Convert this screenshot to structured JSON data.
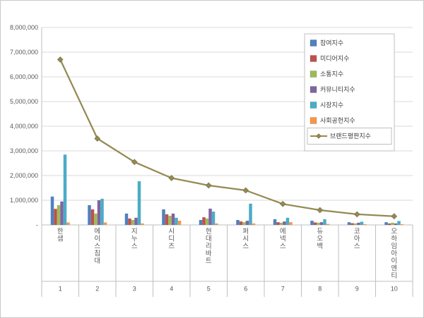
{
  "chart_data": {
    "type": "bar",
    "subtype": "clustered-bars-with-line-overlay",
    "title": "",
    "categories": [
      "한샘",
      "에이스침대",
      "지누스",
      "시디즈",
      "현대리바트",
      "퍼시스",
      "에넥스",
      "듀오백",
      "코아스",
      "오하임아이엔티"
    ],
    "category_ranks": [
      "1",
      "2",
      "3",
      "4",
      "5",
      "6",
      "7",
      "8",
      "9",
      "10"
    ],
    "series": [
      {
        "name": "참여지수",
        "type": "bar",
        "color": "#4F81BD",
        "values": [
          1150000,
          800000,
          460000,
          630000,
          200000,
          200000,
          230000,
          170000,
          110000,
          110000
        ]
      },
      {
        "name": "미디어지수",
        "type": "bar",
        "color": "#C0504D",
        "values": [
          650000,
          630000,
          260000,
          430000,
          310000,
          140000,
          110000,
          100000,
          70000,
          60000
        ]
      },
      {
        "name": "소통지수",
        "type": "bar",
        "color": "#9BBB59",
        "values": [
          800000,
          460000,
          200000,
          370000,
          260000,
          110000,
          90000,
          90000,
          60000,
          90000
        ]
      },
      {
        "name": "커뮤니티지수",
        "type": "bar",
        "color": "#8064A2",
        "values": [
          950000,
          1000000,
          290000,
          460000,
          660000,
          170000,
          140000,
          110000,
          90000,
          60000
        ]
      },
      {
        "name": "시장지수",
        "type": "bar",
        "color": "#4BACC6",
        "values": [
          2850000,
          1060000,
          1770000,
          290000,
          540000,
          860000,
          290000,
          230000,
          130000,
          160000
        ]
      },
      {
        "name": "사회공헌지수",
        "type": "bar",
        "color": "#F79646",
        "values": [
          100000,
          100000,
          60000,
          170000,
          60000,
          60000,
          110000,
          40000,
          30000,
          30000
        ]
      },
      {
        "name": "브랜드평판지수",
        "type": "line",
        "color": "#948A54",
        "values": [
          6700000,
          3500000,
          2550000,
          1900000,
          1600000,
          1400000,
          850000,
          600000,
          430000,
          350000
        ]
      }
    ],
    "ylim": [
      0,
      8000000
    ],
    "ytick_interval": 1000000,
    "ytick_labels": [
      "-",
      "1,000,000",
      "2,000,000",
      "3,000,000",
      "4,000,000",
      "5,000,000",
      "6,000,000",
      "7,000,000",
      "8,000,000"
    ],
    "grid": true,
    "legend_position": "right-top",
    "style": {
      "background": "#FFFFFF",
      "frame_border": "#C9C9C9",
      "grid_color": "#D9D9D9",
      "axis_color": "#BFBFBF",
      "text_color": "#595959",
      "legend_text_color": "#404040",
      "legend_border": "#BFBFBF",
      "line_marker_stroke": "#7A7244"
    }
  }
}
